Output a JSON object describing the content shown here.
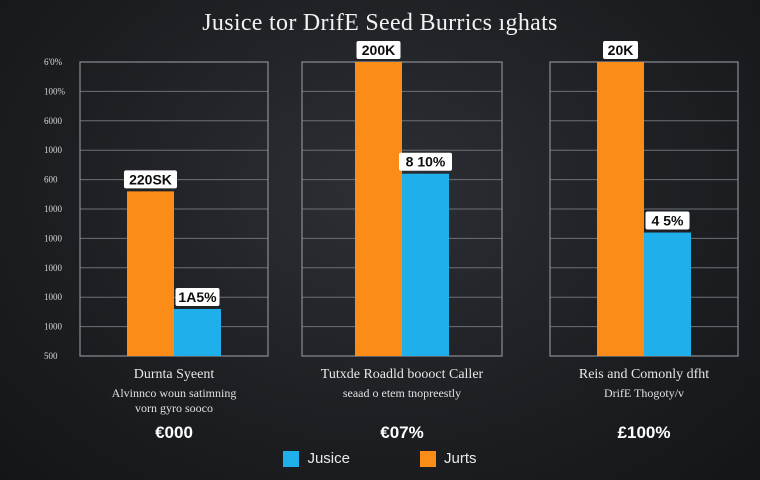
{
  "chart_data": {
    "type": "bar",
    "title": "Jusice tor DrifE Seed Burrics ıghats",
    "yticks": [
      "6'0%",
      "100%",
      "6000",
      "1000",
      "600",
      "1000",
      "1000",
      "1000",
      "1000",
      "1000",
      "500"
    ],
    "ylim": [
      0,
      1000
    ],
    "categories": [
      {
        "lines": [
          "Durnta Syeent",
          "Alvinnco woun satimning",
          "vorn gyro sooco"
        ],
        "total": "€000"
      },
      {
        "lines": [
          "Tutxde Roadld boooct Caller",
          "seaad o etem tnopreestly"
        ],
        "total": "€07%"
      },
      {
        "lines": [
          "Reis and Comonly dfht",
          "DrifE Thogoty/v"
        ],
        "total": "£100%"
      }
    ],
    "series": [
      {
        "name": "Jurts",
        "color": "#fb8c17",
        "values": [
          560,
          1000,
          1000
        ],
        "labels": [
          "220SK",
          "200K",
          "20K"
        ]
      },
      {
        "name": "Jusice",
        "color": "#1fb0ec",
        "values": [
          160,
          620,
          420
        ],
        "labels": [
          "1A5%",
          "8 10%",
          "4 5%"
        ]
      }
    ],
    "legend": [
      {
        "name": "Jusice",
        "color": "#1fb0ec"
      },
      {
        "name": "Jurts",
        "color": "#fb8c17"
      }
    ],
    "legend_position": "bottom-center",
    "grid": true
  }
}
